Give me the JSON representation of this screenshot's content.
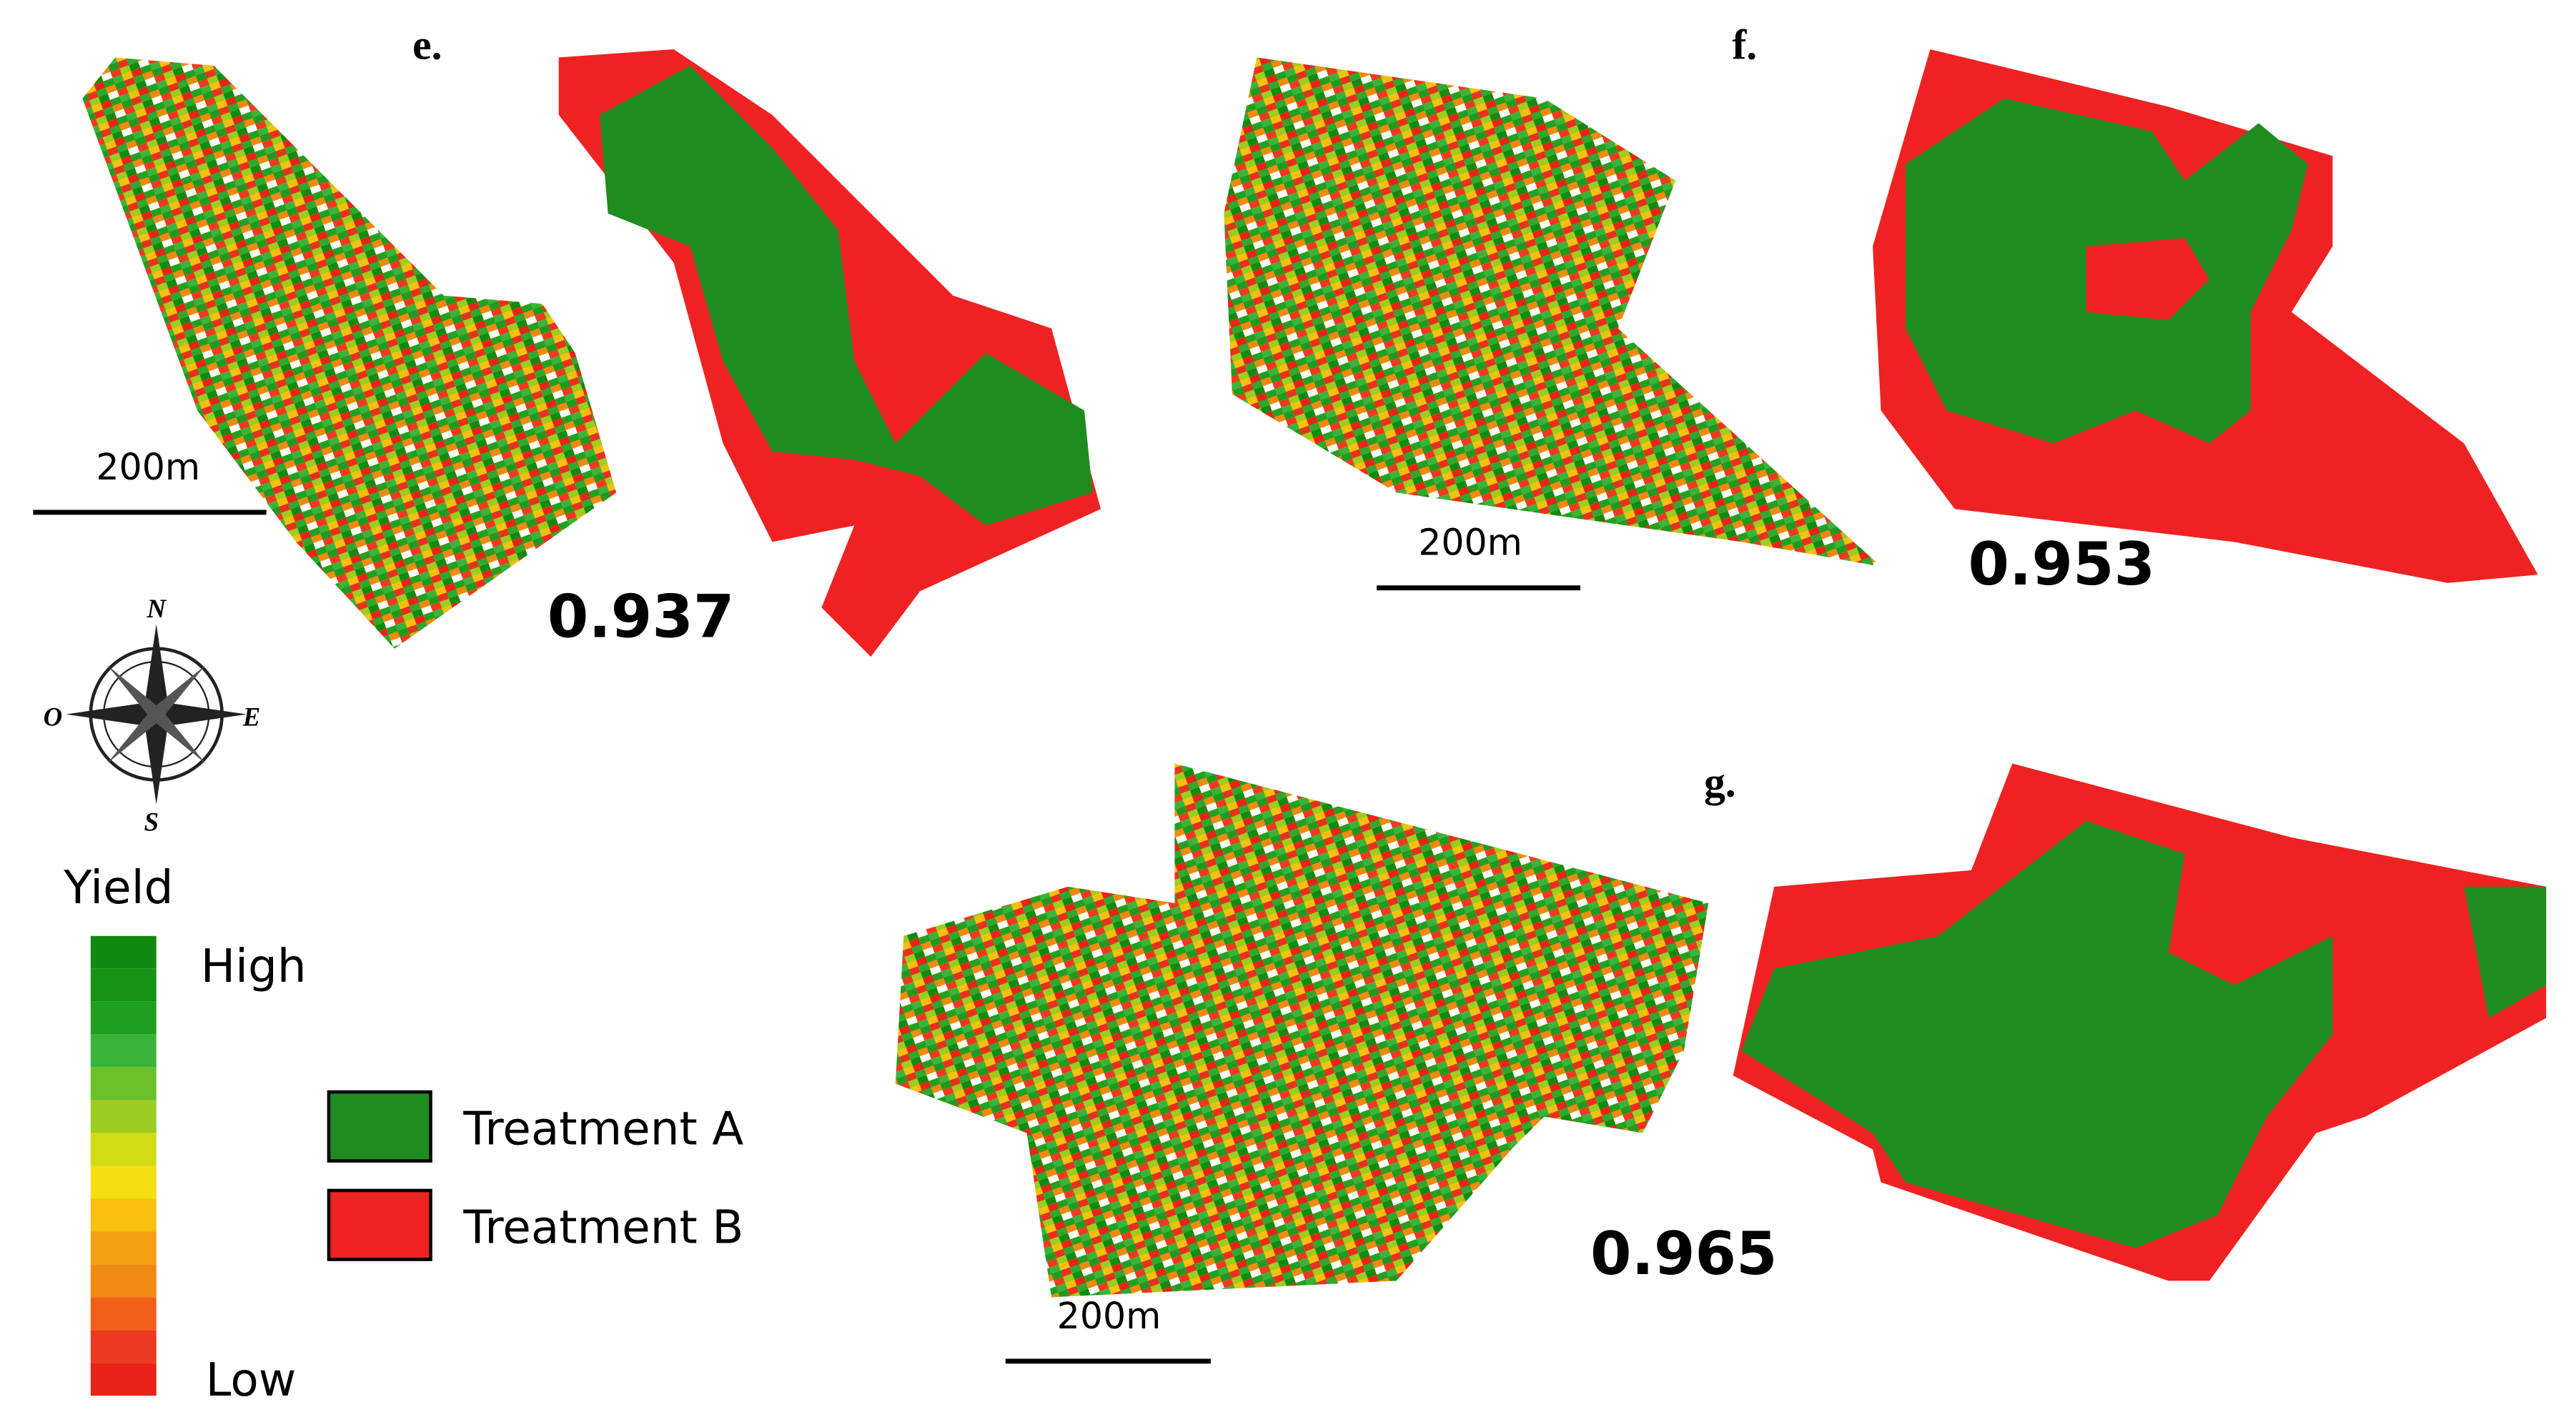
{
  "panels": [
    {
      "label": "e.",
      "score": "0.937",
      "scale_bar": "200m"
    },
    {
      "label": "f.",
      "score": "0.953",
      "scale_bar": "200m"
    },
    {
      "label": "g.",
      "score": "0.965",
      "scale_bar": "200m"
    }
  ],
  "compass": {
    "north": "N",
    "south": "S",
    "east": "E",
    "west": "O"
  },
  "yield_legend": {
    "title": "Yield",
    "high": "High",
    "low": "Low"
  },
  "treatment_legend": [
    {
      "label": "Treatment A"
    },
    {
      "label": "Treatment B"
    }
  ]
}
